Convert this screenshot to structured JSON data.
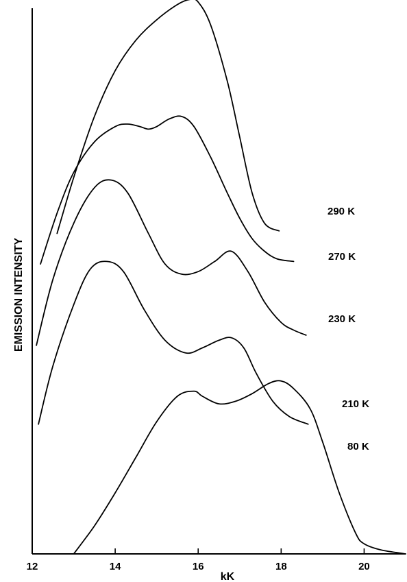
{
  "chart_data": {
    "type": "line",
    "xlabel": "kK",
    "ylabel": "EMISSION INTENSITY",
    "xlim": [
      12,
      21
    ],
    "x_ticks": [
      "12",
      "14",
      "16",
      "18",
      "20"
    ],
    "y_ticks": [],
    "grid": false,
    "series": [
      {
        "name": "290 K",
        "x": [
          12.6,
          13.0,
          13.5,
          14.0,
          14.5,
          15.0,
          15.5,
          15.8,
          16.0,
          16.3,
          16.7,
          17.0,
          17.3,
          17.6,
          17.95
        ],
        "y": [
          0.63,
          0.74,
          0.86,
          0.95,
          1.01,
          1.05,
          1.08,
          1.09,
          1.085,
          1.04,
          0.93,
          0.82,
          0.71,
          0.65,
          0.635
        ]
      },
      {
        "name": "270 K",
        "x": [
          12.2,
          12.6,
          13.0,
          13.5,
          14.0,
          14.3,
          14.6,
          14.8,
          15.0,
          15.3,
          15.6,
          15.9,
          16.3,
          16.7,
          17.0,
          17.3,
          17.6,
          17.9,
          18.3
        ],
        "y": [
          0.57,
          0.67,
          0.75,
          0.81,
          0.84,
          0.845,
          0.84,
          0.835,
          0.84,
          0.855,
          0.86,
          0.84,
          0.78,
          0.71,
          0.66,
          0.62,
          0.595,
          0.58,
          0.575
        ]
      },
      {
        "name": "230 K",
        "x": [
          12.1,
          12.5,
          13.0,
          13.5,
          13.9,
          14.3,
          14.8,
          15.2,
          15.6,
          16.0,
          16.4,
          16.8,
          17.2,
          17.6,
          18.0,
          18.3,
          18.6
        ],
        "y": [
          0.41,
          0.54,
          0.65,
          0.72,
          0.735,
          0.71,
          0.63,
          0.57,
          0.55,
          0.555,
          0.575,
          0.595,
          0.555,
          0.495,
          0.455,
          0.44,
          0.43
        ]
      },
      {
        "name": "210 K",
        "x": [
          12.15,
          12.5,
          13.0,
          13.4,
          13.8,
          14.2,
          14.7,
          15.2,
          15.7,
          16.1,
          16.5,
          16.8,
          17.1,
          17.4,
          17.8,
          18.2,
          18.65
        ],
        "y": [
          0.255,
          0.37,
          0.49,
          0.56,
          0.575,
          0.555,
          0.48,
          0.42,
          0.395,
          0.405,
          0.42,
          0.425,
          0.405,
          0.355,
          0.3,
          0.27,
          0.255
        ]
      },
      {
        "name": "80 K",
        "x": [
          13.0,
          13.5,
          14.0,
          14.5,
          15.0,
          15.5,
          15.9,
          16.1,
          16.5,
          16.9,
          17.3,
          17.7,
          18.0,
          18.3,
          18.7,
          19.0,
          19.4,
          19.8,
          20.0,
          20.4,
          21.0
        ],
        "y": [
          0.0,
          0.055,
          0.12,
          0.19,
          0.26,
          0.31,
          0.32,
          0.31,
          0.295,
          0.3,
          0.315,
          0.335,
          0.34,
          0.325,
          0.285,
          0.22,
          0.12,
          0.04,
          0.02,
          0.008,
          0.0
        ]
      }
    ]
  }
}
